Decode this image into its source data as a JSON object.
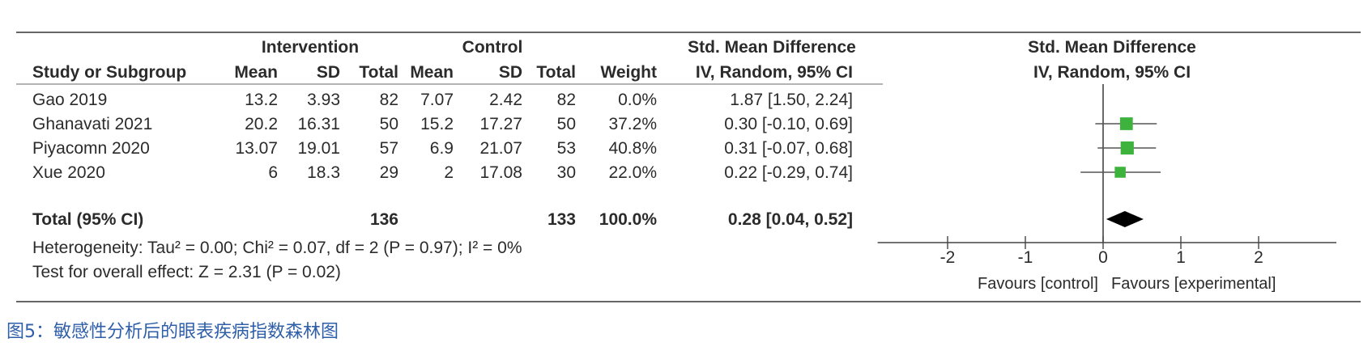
{
  "chart_data": {
    "type": "forest",
    "group_headers": {
      "intervention": "Intervention",
      "control": "Control",
      "smd_text": "Std. Mean Difference",
      "smd_plot": "Std. Mean Difference"
    },
    "column_headers": {
      "study": "Study or Subgroup",
      "int_mean": "Mean",
      "int_sd": "SD",
      "int_total": "Total",
      "ctl_mean": "Mean",
      "ctl_sd": "SD",
      "ctl_total": "Total",
      "weight": "Weight",
      "ci_text": "IV, Random, 95% CI",
      "ci_plot": "IV, Random, 95% CI"
    },
    "studies": [
      {
        "name": "Gao 2019",
        "int_mean": "13.2",
        "int_sd": "3.93",
        "int_total": "82",
        "ctl_mean": "7.07",
        "ctl_sd": "2.42",
        "ctl_total": "82",
        "weight_label": "0.0%",
        "weight": 0.0,
        "ci_label": "1.87 [1.50, 2.24]",
        "est": 1.87,
        "lo": 1.5,
        "hi": 2.24
      },
      {
        "name": "Ghanavati 2021",
        "int_mean": "20.2",
        "int_sd": "16.31",
        "int_total": "50",
        "ctl_mean": "15.2",
        "ctl_sd": "17.27",
        "ctl_total": "50",
        "weight_label": "37.2%",
        "weight": 37.2,
        "ci_label": "0.30 [-0.10, 0.69]",
        "est": 0.3,
        "lo": -0.1,
        "hi": 0.69
      },
      {
        "name": "Piyacomn 2020",
        "int_mean": "13.07",
        "int_sd": "19.01",
        "int_total": "57",
        "ctl_mean": "6.9",
        "ctl_sd": "21.07",
        "ctl_total": "53",
        "weight_label": "40.8%",
        "weight": 40.8,
        "ci_label": "0.31 [-0.07, 0.68]",
        "est": 0.31,
        "lo": -0.07,
        "hi": 0.68
      },
      {
        "name": "Xue 2020",
        "int_mean": "6",
        "int_sd": "18.3",
        "int_total": "29",
        "ctl_mean": "2",
        "ctl_sd": "17.08",
        "ctl_total": "30",
        "weight_label": "22.0%",
        "weight": 22.0,
        "ci_label": "0.22 [-0.29, 0.74]",
        "est": 0.22,
        "lo": -0.29,
        "hi": 0.74
      }
    ],
    "total": {
      "name": "Total (95% CI)",
      "int_total": "136",
      "ctl_total": "133",
      "weight_label": "100.0%",
      "ci_label": "0.28 [0.04, 0.52]",
      "est": 0.28,
      "lo": 0.04,
      "hi": 0.52
    },
    "heterogeneity": "Heterogeneity: Tau² = 0.00; Chi² = 0.07, df = 2 (P = 0.97); I² = 0%",
    "overall_effect": "Test for overall effect: Z = 2.31 (P = 0.02)",
    "x_ticks": [
      -2,
      -1,
      0,
      1,
      2
    ],
    "x_tick_labels": [
      "-2",
      "-1",
      "0",
      "1",
      "2"
    ],
    "xlim": [
      -2.9,
      3.0
    ],
    "favours_left": "Favours [control]",
    "favours_right": "Favours [experimental]",
    "colors": {
      "square": "#3db33d",
      "diamond": "#000000",
      "line": "#555555"
    }
  },
  "caption": "图5：敏感性分析后的眼表疾病指数森林图"
}
